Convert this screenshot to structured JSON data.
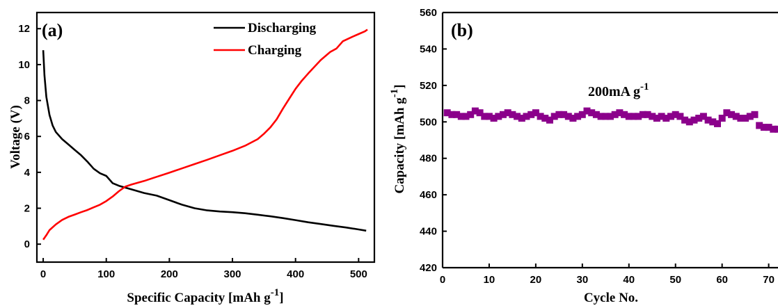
{
  "chart_data": [
    {
      "panel": "(a)",
      "type": "line",
      "xlabel": "Specific Capacity [mAh g",
      "xlabel_sup": "-1",
      "xlabel_end": "]",
      "ylabel": "Voltage (V)",
      "xlim": [
        -10,
        525
      ],
      "ylim": [
        -1,
        12.9
      ],
      "xticks": [
        0,
        100,
        200,
        300,
        400,
        500
      ],
      "yticks": [
        0,
        2,
        4,
        6,
        8,
        10,
        12
      ],
      "legend_position": "top-right",
      "series": [
        {
          "name": "Discharging",
          "color": "#000000",
          "points": [
            [
              0,
              10.8
            ],
            [
              2,
              9.4
            ],
            [
              5,
              8.2
            ],
            [
              10,
              7.2
            ],
            [
              15,
              6.6
            ],
            [
              20,
              6.25
            ],
            [
              30,
              5.85
            ],
            [
              40,
              5.55
            ],
            [
              50,
              5.25
            ],
            [
              60,
              4.95
            ],
            [
              70,
              4.6
            ],
            [
              80,
              4.2
            ],
            [
              90,
              3.95
            ],
            [
              100,
              3.8
            ],
            [
              110,
              3.4
            ],
            [
              120,
              3.25
            ],
            [
              140,
              3.05
            ],
            [
              160,
              2.85
            ],
            [
              180,
              2.7
            ],
            [
              200,
              2.45
            ],
            [
              220,
              2.2
            ],
            [
              240,
              2.0
            ],
            [
              260,
              1.88
            ],
            [
              280,
              1.82
            ],
            [
              300,
              1.78
            ],
            [
              320,
              1.72
            ],
            [
              340,
              1.64
            ],
            [
              360,
              1.55
            ],
            [
              380,
              1.45
            ],
            [
              400,
              1.34
            ],
            [
              420,
              1.22
            ],
            [
              440,
              1.12
            ],
            [
              460,
              1.02
            ],
            [
              480,
              0.93
            ],
            [
              500,
              0.82
            ],
            [
              512,
              0.75
            ]
          ]
        },
        {
          "name": "Charging",
          "color": "#ff0000",
          "points": [
            [
              0,
              0.25
            ],
            [
              5,
              0.5
            ],
            [
              10,
              0.78
            ],
            [
              20,
              1.1
            ],
            [
              30,
              1.35
            ],
            [
              40,
              1.52
            ],
            [
              50,
              1.65
            ],
            [
              60,
              1.78
            ],
            [
              70,
              1.9
            ],
            [
              80,
              2.05
            ],
            [
              90,
              2.2
            ],
            [
              100,
              2.4
            ],
            [
              110,
              2.65
            ],
            [
              120,
              2.95
            ],
            [
              130,
              3.2
            ],
            [
              140,
              3.32
            ],
            [
              160,
              3.52
            ],
            [
              180,
              3.75
            ],
            [
              200,
              3.98
            ],
            [
              220,
              4.22
            ],
            [
              240,
              4.46
            ],
            [
              260,
              4.7
            ],
            [
              280,
              4.95
            ],
            [
              300,
              5.2
            ],
            [
              320,
              5.48
            ],
            [
              340,
              5.85
            ],
            [
              350,
              6.15
            ],
            [
              360,
              6.5
            ],
            [
              370,
              6.95
            ],
            [
              380,
              7.55
            ],
            [
              390,
              8.1
            ],
            [
              400,
              8.65
            ],
            [
              410,
              9.1
            ],
            [
              420,
              9.5
            ],
            [
              440,
              10.25
            ],
            [
              455,
              10.7
            ],
            [
              465,
              10.9
            ],
            [
              475,
              11.3
            ],
            [
              490,
              11.55
            ],
            [
              500,
              11.7
            ],
            [
              510,
              11.85
            ],
            [
              514,
              11.95
            ]
          ]
        }
      ]
    },
    {
      "panel": "(b)",
      "type": "scatter",
      "xlabel": "Cycle No.",
      "ylabel": "Capacity [mAh g",
      "ylabel_sup": "-1",
      "ylabel_end": "]",
      "xlim": [
        0,
        72
      ],
      "ylim": [
        420,
        560
      ],
      "xticks": [
        0,
        10,
        20,
        30,
        40,
        50,
        60,
        70
      ],
      "yticks": [
        420,
        440,
        460,
        480,
        500,
        520,
        540,
        560
      ],
      "annotation": "200mA g",
      "annotation_sup": "-1",
      "marker_color": "#8b008b",
      "x": [
        1,
        2,
        3,
        4,
        5,
        6,
        7,
        8,
        9,
        10,
        11,
        12,
        13,
        14,
        15,
        16,
        17,
        18,
        19,
        20,
        21,
        22,
        23,
        24,
        25,
        26,
        27,
        28,
        29,
        30,
        31,
        32,
        33,
        34,
        35,
        36,
        37,
        38,
        39,
        40,
        41,
        42,
        43,
        44,
        45,
        46,
        47,
        48,
        49,
        50,
        51,
        52,
        53,
        54,
        55,
        56,
        57,
        58,
        59,
        60,
        61,
        62,
        63,
        64,
        65,
        66,
        67,
        68,
        69,
        70,
        71,
        72
      ],
      "values": [
        505,
        504,
        504,
        503,
        503,
        504,
        506,
        505,
        503,
        503,
        502,
        503,
        504,
        505,
        504,
        503,
        502,
        503,
        504,
        505,
        503,
        502,
        501,
        503,
        504,
        504,
        503,
        502,
        503,
        504,
        506,
        505,
        504,
        503,
        503,
        503,
        504,
        505,
        504,
        503,
        503,
        503,
        504,
        504,
        503,
        502,
        503,
        502,
        503,
        504,
        503,
        501,
        500,
        501,
        502,
        503,
        501,
        500,
        499,
        502,
        505,
        504,
        503,
        502,
        502,
        503,
        504,
        498,
        497,
        497,
        496,
        496
      ]
    }
  ]
}
